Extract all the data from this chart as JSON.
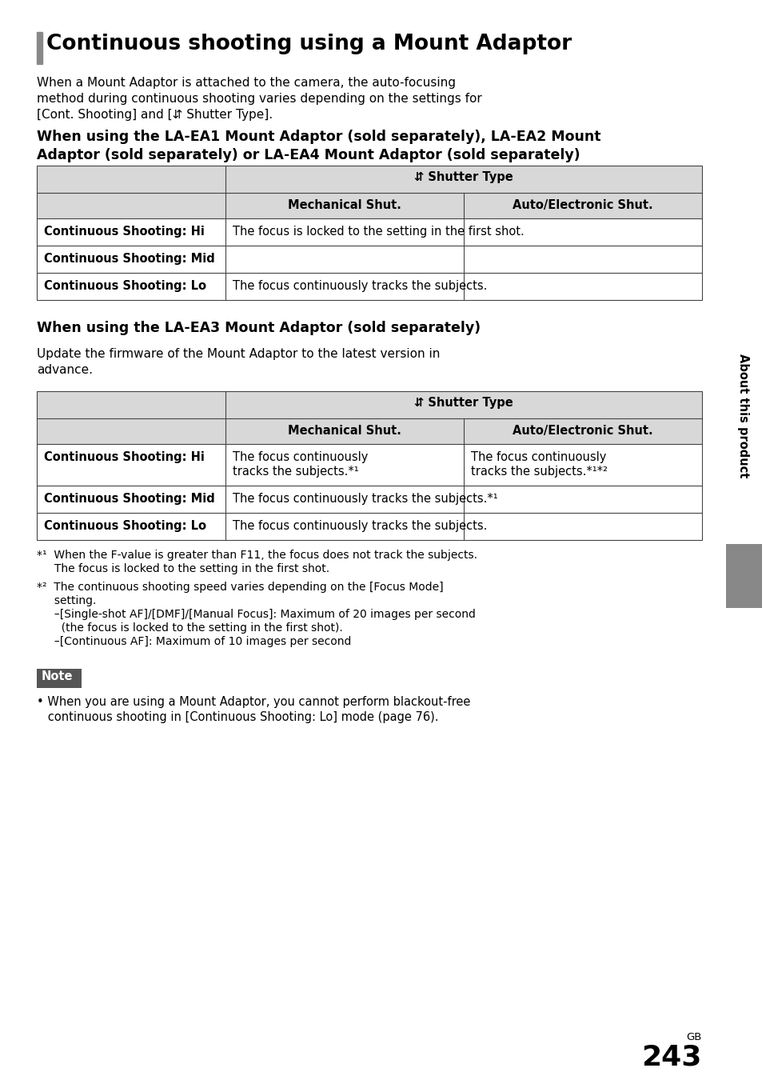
{
  "bg_color": "#ffffff",
  "title_bar_color": "#888888",
  "table_header_bg": "#d8d8d8",
  "table_border_color": "#444444",
  "note_bg": "#555555",
  "sidebar_bg": "#555555",
  "sidebar_gray_bg": "#888888",
  "title": "Continuous shooting using a Mount Adaptor",
  "intro_line1": "When a Mount Adaptor is attached to the camera, the auto-focusing",
  "intro_line2": "method during continuous shooting varies depending on the settings for",
  "intro_line3": "[Cont. Shooting] and [⇵ Shutter Type].",
  "section1_line1": "When using the LA-EA1 Mount Adaptor (sold separately), LA-EA2 Mount",
  "section1_line2": "Adaptor (sold separately) or LA-EA4 Mount Adaptor (sold separately)",
  "shutter_type_label": "⇵ Shutter Type",
  "col1_header": "Mechanical Shut.",
  "col2_header": "Auto/Electronic Shut.",
  "section2_heading": "When using the LA-EA3 Mount Adaptor (sold separately)",
  "section2_intro1": "Update the firmware of the Mount Adaptor to the latest version in",
  "section2_intro2": "advance.",
  "sidebar_text": "About this product",
  "page_label": "GB",
  "page_number": "243",
  "footnote1_line1": "*¹  When the F-value is greater than F11, the focus does not track the subjects.",
  "footnote1_line2": "     The focus is locked to the setting in the first shot.",
  "footnote2_line1": "*²  The continuous shooting speed varies depending on the [Focus Mode]",
  "footnote2_line2": "     setting.",
  "footnote2_line3": "     –[Single-shot AF]/[DMF]/[Manual Focus]: Maximum of 20 images per second",
  "footnote2_line4": "       (the focus is locked to the setting in the first shot).",
  "footnote2_line5": "     –[Continuous AF]: Maximum of 10 images per second",
  "note_label": "Note",
  "note_bullet": "• When you are using a Mount Adaptor, you cannot perform blackout-free",
  "note_bullet2": "   continuous shooting in [Continuous Shooting: Lo] mode (page 76)."
}
